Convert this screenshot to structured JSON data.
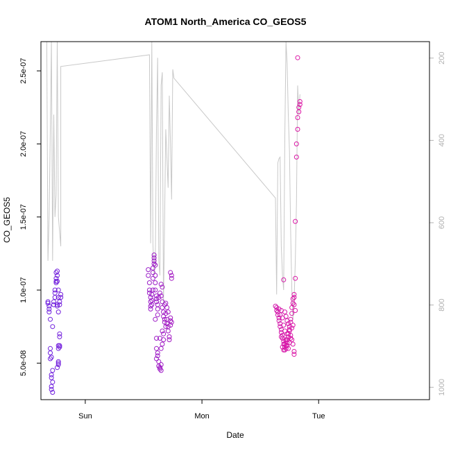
{
  "chart_data": {
    "type": "scatter",
    "title": "ATOM1 North_America CO_GEOS5",
    "xlabel": "Date",
    "ylabel": "CO_GEOS5",
    "x_ticks": [
      "Sun",
      "Mon",
      "Tue"
    ],
    "y_ticks": [
      "5.0e-08",
      "1.0e-07",
      "1.5e-07",
      "2.0e-07",
      "2.5e-07"
    ],
    "y_tick_values": [
      5e-08,
      1e-07,
      1.5e-07,
      2e-07,
      2.5e-07
    ],
    "ylim": [
      2.5e-08,
      2.7e-07
    ],
    "xlim_days": [
      -0.38,
      2.95
    ],
    "right_axis": {
      "ticks": [
        "200",
        "400",
        "600",
        "800",
        "1000"
      ],
      "values": [
        200,
        400,
        600,
        800,
        1000
      ],
      "range": [
        160,
        1030
      ],
      "reversed": true,
      "color": "#b0b0b0"
    },
    "grid": false,
    "legend": "none",
    "colors": {
      "start": "#6a1fe0",
      "end": "#ff1493",
      "line": "#c8c8c8"
    },
    "series": [
      {
        "values": [
          [
            -0.32,
            9.1e-08
          ],
          [
            -0.32,
            9.2e-08
          ],
          [
            -0.31,
            8.9e-08
          ],
          [
            -0.31,
            8.7e-08
          ],
          [
            -0.31,
            8.5e-08
          ],
          [
            -0.3,
            8e-08
          ],
          [
            -0.3,
            6e-08
          ],
          [
            -0.3,
            5.7e-08
          ],
          [
            -0.29,
            5.4e-08
          ],
          [
            -0.3,
            5.3e-08
          ],
          [
            -0.29,
            4.2e-08
          ],
          [
            -0.29,
            4e-08
          ],
          [
            -0.28,
            3.7e-08
          ],
          [
            -0.29,
            3.4e-08
          ],
          [
            -0.29,
            3.2e-08
          ],
          [
            -0.28,
            3e-08
          ],
          [
            -0.28,
            4.5e-08
          ],
          [
            -0.28,
            7.5e-08
          ],
          [
            -0.27,
            9e-08
          ],
          [
            -0.27,
            9.2e-08
          ],
          [
            -0.26,
            9.5e-08
          ],
          [
            -0.26,
            9.8e-08
          ],
          [
            -0.26,
            1e-07
          ],
          [
            -0.25,
            1.06e-07
          ],
          [
            -0.25,
            1.05e-07
          ],
          [
            -0.25,
            1.08e-07
          ],
          [
            -0.25,
            1.12e-07
          ],
          [
            -0.24,
            1.1e-07
          ],
          [
            -0.24,
            1.13e-07
          ],
          [
            -0.24,
            1.06e-07
          ],
          [
            -0.23,
            1e-07
          ],
          [
            -0.23,
            9.5e-08
          ],
          [
            -0.24,
            9e-08
          ],
          [
            -0.24,
            8.9e-08
          ],
          [
            -0.23,
            8.5e-08
          ],
          [
            -0.23,
            6.2e-08
          ],
          [
            -0.22,
            6.1e-08
          ],
          [
            -0.23,
            6e-08
          ],
          [
            -0.22,
            6.2e-08
          ],
          [
            -0.23,
            5.1e-08
          ],
          [
            -0.23,
            5e-08
          ],
          [
            -0.23,
            4.9e-08
          ],
          [
            -0.24,
            4.7e-08
          ],
          [
            -0.22,
            7e-08
          ],
          [
            -0.22,
            6.8e-08
          ],
          [
            -0.22,
            9e-08
          ],
          [
            -0.22,
            9.2e-08
          ],
          [
            -0.21,
            9.5e-08
          ],
          [
            -0.21,
            9.7e-08
          ],
          [
            0.54,
            1.14e-07
          ],
          [
            0.54,
            1.1e-07
          ],
          [
            0.55,
            1.05e-07
          ],
          [
            0.55,
            1e-07
          ],
          [
            0.55,
            9.8e-08
          ],
          [
            0.56,
            9.5e-08
          ],
          [
            0.56,
            9.2e-08
          ],
          [
            0.56,
            8.9e-08
          ],
          [
            0.56,
            8.7e-08
          ],
          [
            0.57,
            9e-08
          ],
          [
            0.57,
            9.3e-08
          ],
          [
            0.57,
            9.7e-08
          ],
          [
            0.58,
            1e-07
          ],
          [
            0.58,
            1.08e-07
          ],
          [
            0.58,
            1.12e-07
          ],
          [
            0.58,
            1.15e-07
          ],
          [
            0.59,
            1.18e-07
          ],
          [
            0.59,
            1.2e-07
          ],
          [
            0.59,
            1.22e-07
          ],
          [
            0.59,
            1.24e-07
          ],
          [
            0.6,
            1.17e-07
          ],
          [
            0.6,
            1.1e-07
          ],
          [
            0.6,
            1.05e-07
          ],
          [
            0.6,
            1e-07
          ],
          [
            0.61,
            9.6e-08
          ],
          [
            0.61,
            9.4e-08
          ],
          [
            0.61,
            9.2e-08
          ],
          [
            0.62,
            9e-08
          ],
          [
            0.62,
            8.7e-08
          ],
          [
            0.62,
            8.3e-08
          ],
          [
            0.6,
            8e-08
          ],
          [
            0.61,
            6.7e-08
          ],
          [
            0.61,
            6e-08
          ],
          [
            0.62,
            5.7e-08
          ],
          [
            0.62,
            5.5e-08
          ],
          [
            0.61,
            5.3e-08
          ],
          [
            0.63,
            5.1e-08
          ],
          [
            0.63,
            4.8e-08
          ],
          [
            0.64,
            4.7e-08
          ],
          [
            0.64,
            4.6e-08
          ],
          [
            0.65,
            4.9e-08
          ],
          [
            0.65,
            4.5e-08
          ],
          [
            0.64,
            6.7e-08
          ],
          [
            0.65,
            6e-08
          ],
          [
            0.63,
            9.5e-08
          ],
          [
            0.64,
            9.8e-08
          ],
          [
            0.65,
            9.6e-08
          ],
          [
            0.66,
            9.2e-08
          ],
          [
            0.66,
            8.8e-08
          ],
          [
            0.67,
            8.5e-08
          ],
          [
            0.67,
            8.2e-08
          ],
          [
            0.68,
            8e-08
          ],
          [
            0.68,
            7.8e-08
          ],
          [
            0.69,
            7.5e-08
          ],
          [
            0.66,
            7.2e-08
          ],
          [
            0.67,
            7e-08
          ],
          [
            0.65,
            1.04e-07
          ],
          [
            0.66,
            1.02e-07
          ],
          [
            0.69,
            8.4e-08
          ],
          [
            0.7,
            8e-08
          ],
          [
            0.7,
            7.7e-08
          ],
          [
            0.71,
            7.5e-08
          ],
          [
            0.71,
            7.2e-08
          ],
          [
            0.72,
            6.8e-08
          ],
          [
            0.72,
            6.6e-08
          ],
          [
            0.7,
            8.8e-08
          ],
          [
            0.71,
            8.5e-08
          ],
          [
            0.73,
            8.1e-08
          ],
          [
            0.73,
            7.9e-08
          ],
          [
            0.74,
            7.8e-08
          ],
          [
            0.73,
            7.6e-08
          ],
          [
            0.73,
            1.12e-07
          ],
          [
            0.74,
            1.1e-07
          ],
          [
            0.74,
            1.08e-07
          ],
          [
            0.66,
            6.3e-08
          ],
          [
            0.67,
            6.6e-08
          ],
          [
            0.68,
            9e-08
          ],
          [
            0.69,
            9.1e-08
          ],
          [
            1.63,
            8.9e-08
          ],
          [
            1.64,
            8.8e-08
          ],
          [
            1.64,
            8.6e-08
          ],
          [
            1.65,
            8.5e-08
          ],
          [
            1.65,
            8.3e-08
          ],
          [
            1.66,
            8.1e-08
          ],
          [
            1.66,
            7.9e-08
          ],
          [
            1.67,
            7.7e-08
          ],
          [
            1.67,
            7.5e-08
          ],
          [
            1.68,
            7.3e-08
          ],
          [
            1.68,
            7.1e-08
          ],
          [
            1.69,
            6.9e-08
          ],
          [
            1.69,
            6.7e-08
          ],
          [
            1.7,
            6.5e-08
          ],
          [
            1.7,
            6.3e-08
          ],
          [
            1.71,
            6.1e-08
          ],
          [
            1.71,
            5.9e-08
          ],
          [
            1.72,
            6e-08
          ],
          [
            1.72,
            6.2e-08
          ],
          [
            1.73,
            6.4e-08
          ],
          [
            1.73,
            6.6e-08
          ],
          [
            1.74,
            6.8e-08
          ],
          [
            1.74,
            7e-08
          ],
          [
            1.75,
            7.3e-08
          ],
          [
            1.75,
            7.5e-08
          ],
          [
            1.76,
            7.8e-08
          ],
          [
            1.76,
            8e-08
          ],
          [
            1.77,
            8.4e-08
          ],
          [
            1.77,
            8.8e-08
          ],
          [
            1.78,
            9.1e-08
          ],
          [
            1.78,
            9.4e-08
          ],
          [
            1.79,
            9.7e-08
          ],
          [
            1.79,
            9.5e-08
          ],
          [
            1.8,
            1.08e-07
          ],
          [
            1.8,
            1.47e-07
          ],
          [
            1.81,
            1.91e-07
          ],
          [
            1.81,
            2e-07
          ],
          [
            1.82,
            2.1e-07
          ],
          [
            1.82,
            2.18e-07
          ],
          [
            1.83,
            2.22e-07
          ],
          [
            1.83,
            2.25e-07
          ],
          [
            1.84,
            2.27e-07
          ],
          [
            1.84,
            2.29e-07
          ],
          [
            1.82,
            2.59e-07
          ],
          [
            1.7,
            1.07e-07
          ],
          [
            1.71,
            8.5e-08
          ],
          [
            1.72,
            8.2e-08
          ],
          [
            1.73,
            7.9e-08
          ],
          [
            1.74,
            7.7e-08
          ],
          [
            1.75,
            7.2e-08
          ],
          [
            1.76,
            6.9e-08
          ],
          [
            1.77,
            6.6e-08
          ],
          [
            1.78,
            6.3e-08
          ],
          [
            1.79,
            5.8e-08
          ],
          [
            1.79,
            5.6e-08
          ],
          [
            1.68,
            8.6e-08
          ],
          [
            1.69,
            8.1e-08
          ],
          [
            1.7,
            7.6e-08
          ],
          [
            1.71,
            7.2e-08
          ],
          [
            1.72,
            6.5e-08
          ],
          [
            1.73,
            6.2e-08
          ],
          [
            1.74,
            6e-08
          ],
          [
            1.75,
            6.4e-08
          ],
          [
            1.76,
            6.7e-08
          ],
          [
            1.66,
            8.7e-08
          ],
          [
            1.67,
            8.3e-08
          ],
          [
            1.68,
            6.8e-08
          ],
          [
            1.69,
            6.1e-08
          ],
          [
            1.7,
            5.9e-08
          ],
          [
            1.71,
            6.3e-08
          ],
          [
            1.72,
            6.6e-08
          ],
          [
            1.73,
            7e-08
          ],
          [
            1.77,
            7.4e-08
          ],
          [
            1.78,
            7.6e-08
          ],
          [
            1.79,
            9e-08
          ],
          [
            1.8,
            8.6e-08
          ]
        ]
      },
      {
        "values": [
          [
            -0.33,
            2.7e-07
          ],
          [
            -0.32,
            1.2e-07
          ],
          [
            -0.31,
            1.5e-07
          ],
          [
            -0.3,
            2.1e-07
          ],
          [
            -0.29,
            2.7e-07
          ],
          [
            -0.28,
            1.2e-07
          ],
          [
            -0.27,
            2.2e-07
          ],
          [
            -0.26,
            1.5e-07
          ],
          [
            -0.25,
            1.65e-07
          ],
          [
            -0.24,
            2.7e-07
          ],
          [
            -0.23,
            1.5e-07
          ],
          [
            -0.21,
            1.3e-07
          ],
          [
            -0.21,
            2.53e-07
          ],
          [
            0.55,
            2.61e-07
          ],
          [
            0.56,
            1.32e-07
          ],
          [
            0.57,
            2.7e-07
          ],
          [
            0.58,
            1.32e-07
          ],
          [
            0.59,
            1.1e-07
          ],
          [
            0.6,
            1.18e-07
          ],
          [
            0.61,
            2.1e-07
          ],
          [
            0.62,
            2.59e-07
          ],
          [
            0.63,
            1.2e-07
          ],
          [
            0.64,
            1.1e-07
          ],
          [
            0.65,
            2.4e-07
          ],
          [
            0.66,
            2.49e-07
          ],
          [
            0.67,
            9e-08
          ],
          [
            0.68,
            1.5e-07
          ],
          [
            0.69,
            2.1e-07
          ],
          [
            0.7,
            1.9e-07
          ],
          [
            0.71,
            1.7e-07
          ],
          [
            0.72,
            2.33e-07
          ],
          [
            0.73,
            2e-07
          ],
          [
            0.74,
            1.62e-07
          ],
          [
            0.75,
            2.51e-07
          ],
          [
            0.76,
            2.45e-07
          ],
          [
            1.63,
            1.63e-07
          ],
          [
            1.64,
            9.7e-08
          ],
          [
            1.65,
            1.87e-07
          ],
          [
            1.66,
            1.9e-07
          ],
          [
            1.67,
            1.91e-07
          ],
          [
            1.68,
            1.3e-07
          ],
          [
            1.69,
            1.1e-07
          ],
          [
            1.7,
            1e-07
          ],
          [
            1.71,
            2.05e-07
          ],
          [
            1.72,
            2.7e-07
          ],
          [
            1.73,
            2.55e-07
          ],
          [
            1.74,
            2.2e-07
          ],
          [
            1.75,
            1.95e-07
          ],
          [
            1.76,
            1.4e-07
          ],
          [
            1.77,
            1e-07
          ],
          [
            1.78,
            8e-08
          ],
          [
            1.79,
            9.3e-08
          ],
          [
            1.8,
            1.2e-07
          ],
          [
            1.81,
            1.6e-07
          ],
          [
            1.82,
            2.4e-07
          ],
          [
            1.83,
            2.2e-07
          ],
          [
            1.84,
            2.34e-07
          ]
        ]
      }
    ]
  }
}
